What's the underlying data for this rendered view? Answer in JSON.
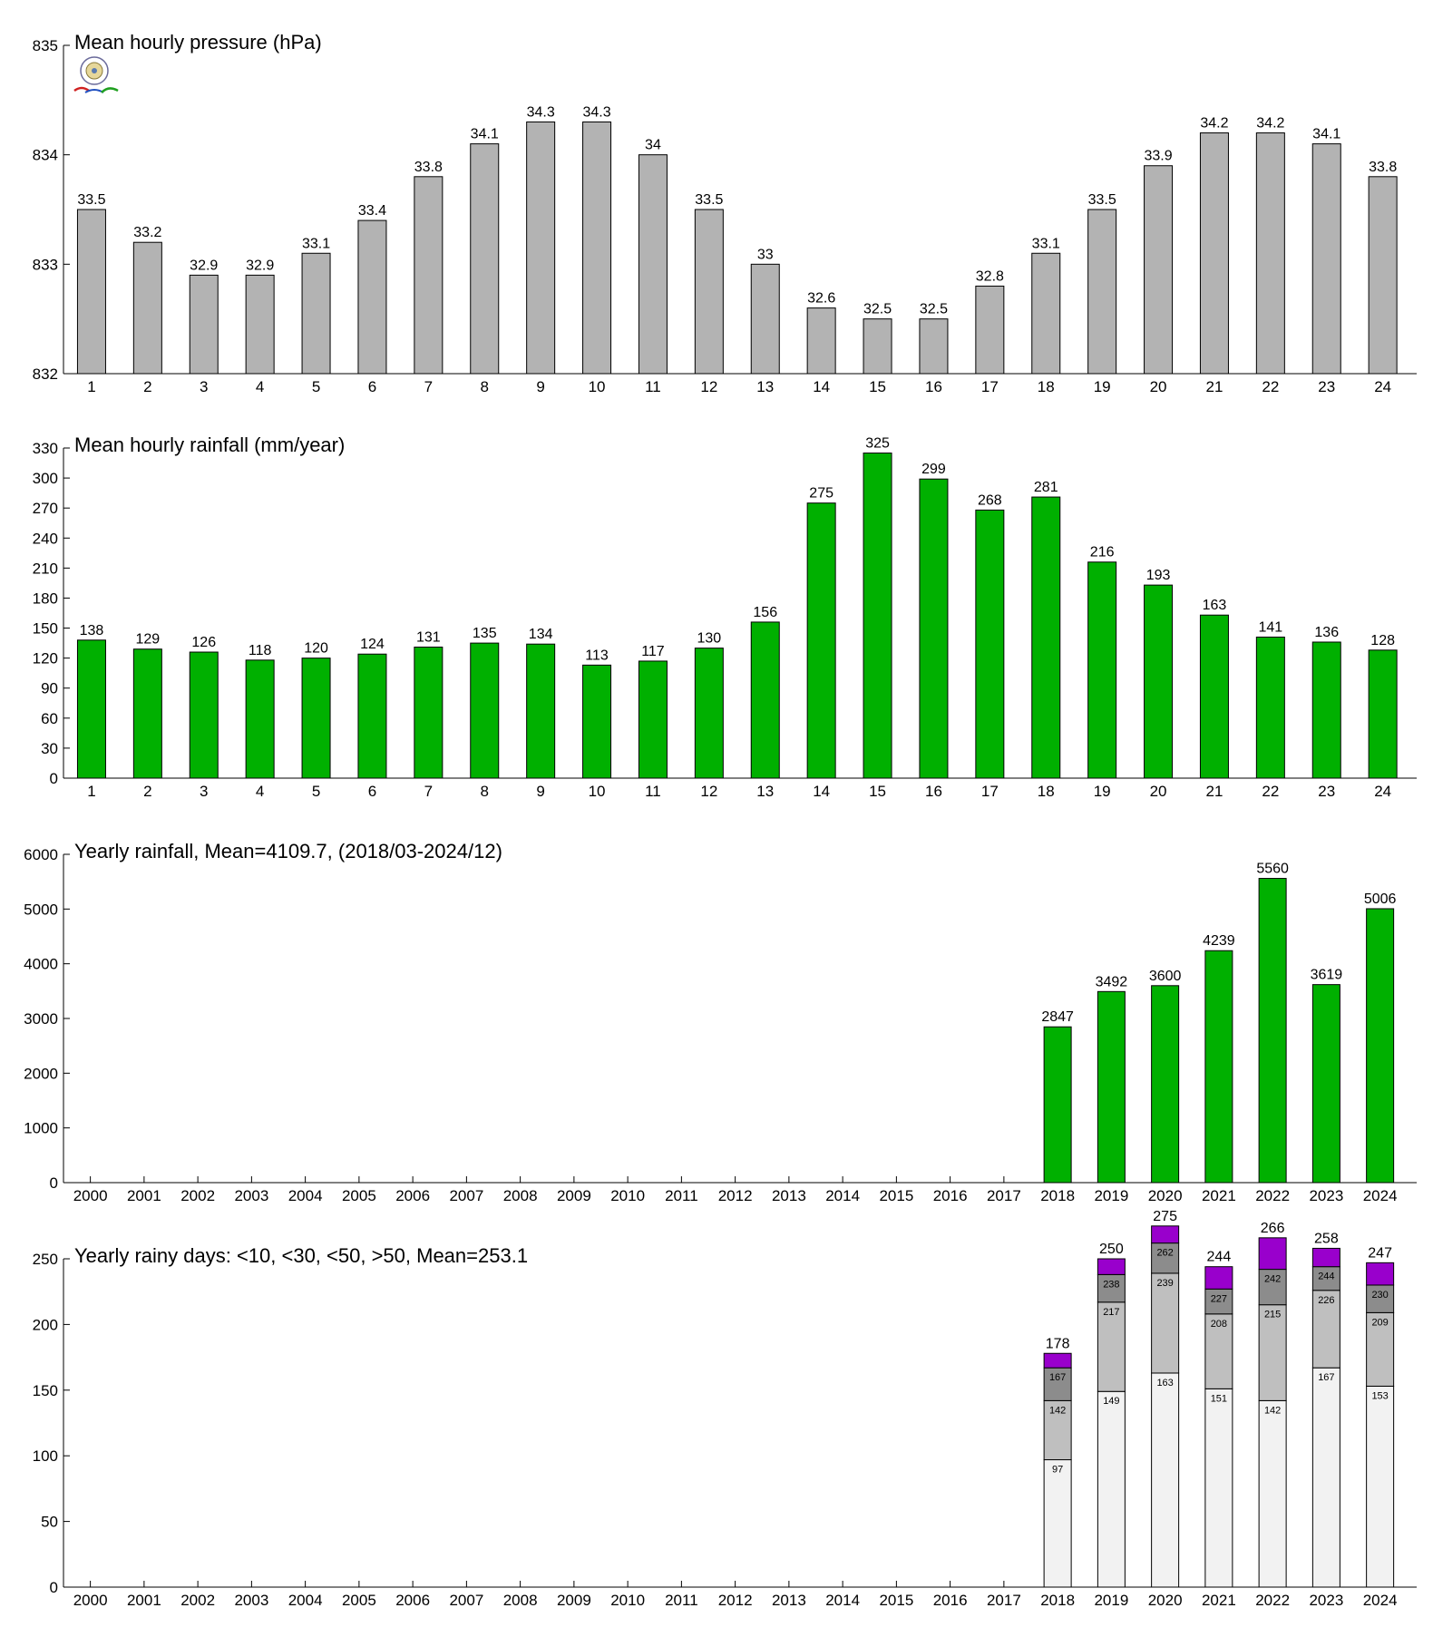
{
  "chart_data": [
    {
      "type": "bar",
      "title": "Mean hourly pressure (hPa)",
      "categories": [
        "1",
        "2",
        "3",
        "4",
        "5",
        "6",
        "7",
        "8",
        "9",
        "10",
        "11",
        "12",
        "13",
        "14",
        "15",
        "16",
        "17",
        "18",
        "19",
        "20",
        "21",
        "22",
        "23",
        "24"
      ],
      "values": [
        833.5,
        833.2,
        832.9,
        832.9,
        833.1,
        833.4,
        833.8,
        834.1,
        834.3,
        834.3,
        834.0,
        833.5,
        833.0,
        832.6,
        832.5,
        832.5,
        832.8,
        833.1,
        833.5,
        833.9,
        834.2,
        834.2,
        834.1,
        833.8
      ],
      "labels": [
        "33.5",
        "33.2",
        "32.9",
        "32.9",
        "33.1",
        "33.4",
        "33.8",
        "34.1",
        "34.3",
        "34.3",
        "34",
        "33.5",
        "33",
        "32.6",
        "32.5",
        "32.5",
        "32.8",
        "33.1",
        "33.5",
        "33.9",
        "34.2",
        "34.2",
        "34.1",
        "33.8"
      ],
      "ylim": [
        832,
        835
      ],
      "yticks": [
        832,
        833,
        834,
        835
      ],
      "color": "#b3b3b3",
      "grid": false
    },
    {
      "type": "bar",
      "title": "Mean hourly rainfall (mm/year)",
      "categories": [
        "1",
        "2",
        "3",
        "4",
        "5",
        "6",
        "7",
        "8",
        "9",
        "10",
        "11",
        "12",
        "13",
        "14",
        "15",
        "16",
        "17",
        "18",
        "19",
        "20",
        "21",
        "22",
        "23",
        "24"
      ],
      "values": [
        138,
        129,
        126,
        118,
        120,
        124,
        131,
        135,
        134,
        113,
        117,
        130,
        156,
        275,
        325,
        299,
        268,
        281,
        216,
        193,
        163,
        141,
        136,
        128
      ],
      "ylim": [
        0,
        330
      ],
      "yticks": [
        0,
        30,
        60,
        90,
        120,
        150,
        180,
        210,
        240,
        270,
        300,
        330
      ],
      "color": "#00b000",
      "grid": false
    },
    {
      "type": "bar",
      "title": "Yearly rainfall, Mean=4109.7, (2018/03-2024/12)",
      "categories": [
        "2000",
        "2001",
        "2002",
        "2003",
        "2004",
        "2005",
        "2006",
        "2007",
        "2008",
        "2009",
        "2010",
        "2011",
        "2012",
        "2013",
        "2014",
        "2015",
        "2016",
        "2017",
        "2018",
        "2019",
        "2020",
        "2021",
        "2022",
        "2023",
        "2024"
      ],
      "values": [
        null,
        null,
        null,
        null,
        null,
        null,
        null,
        null,
        null,
        null,
        null,
        null,
        null,
        null,
        null,
        null,
        null,
        null,
        2847,
        3492,
        3600,
        4239,
        5560,
        3619,
        5006
      ],
      "ylim": [
        0,
        6000
      ],
      "yticks": [
        0,
        1000,
        2000,
        3000,
        4000,
        5000,
        6000
      ],
      "color": "#00b000",
      "grid": false
    },
    {
      "type": "bar",
      "stacked": true,
      "title": "Yearly rainy days: <10, <30, <50, >50, Mean=253.1",
      "categories": [
        "2000",
        "2001",
        "2002",
        "2003",
        "2004",
        "2005",
        "2006",
        "2007",
        "2008",
        "2009",
        "2010",
        "2011",
        "2012",
        "2013",
        "2014",
        "2015",
        "2016",
        "2017",
        "2018",
        "2019",
        "2020",
        "2021",
        "2022",
        "2023",
        "2024"
      ],
      "cumulative": [
        null,
        null,
        null,
        null,
        null,
        null,
        null,
        null,
        null,
        null,
        null,
        null,
        null,
        null,
        null,
        null,
        null,
        null,
        [
          97,
          142,
          167,
          178
        ],
        [
          149,
          217,
          238,
          250
        ],
        [
          163,
          239,
          262,
          275
        ],
        [
          151,
          208,
          227,
          244
        ],
        [
          142,
          215,
          242,
          266
        ],
        [
          167,
          226,
          244,
          258
        ],
        [
          153,
          209,
          230,
          247
        ]
      ],
      "segment_colors": [
        "#f2f2f2",
        "#bfbfbf",
        "#8c8c8c",
        "#9900cc"
      ],
      "ylim": [
        0,
        250
      ],
      "yticks": [
        0,
        50,
        100,
        150,
        200,
        250
      ],
      "grid": false
    }
  ]
}
